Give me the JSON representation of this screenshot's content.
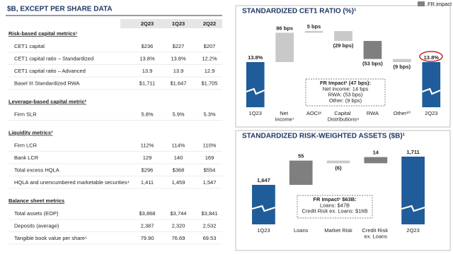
{
  "table": {
    "title": "$B, EXCEPT PER SHARE DATA",
    "columns": [
      "2Q23",
      "1Q23",
      "2Q22"
    ],
    "sections": [
      {
        "heading": "Risk-based capital metrics¹",
        "rows": [
          [
            "CET1 capital",
            "$236",
            "$227",
            "$207"
          ],
          [
            "CET1 capital ratio – Standardized",
            "13.8%",
            "13.8%",
            "12.2%"
          ],
          [
            "CET1 capital ratio – Advanced",
            "13.9",
            "13.9",
            "12.9"
          ],
          [
            "Basel III Standardized RWA",
            "$1,711",
            "$1,647",
            "$1,705"
          ]
        ]
      },
      {
        "heading": "Leverage-based capital metric²",
        "rows": [
          [
            "Firm SLR",
            "5.8%",
            "5.9%",
            "5.3%"
          ]
        ]
      },
      {
        "heading": "Liquidity metrics³",
        "rows": [
          [
            "Firm LCR",
            "112%",
            "114%",
            "110%"
          ],
          [
            "Bank LCR",
            "129",
            "140",
            "169"
          ],
          [
            "Total excess HQLA",
            "$296",
            "$368",
            "$554"
          ],
          [
            "HQLA and unencumbered marketable securities⁴",
            "1,411",
            "1,459",
            "1,547"
          ]
        ]
      },
      {
        "heading": "Balance sheet metrics",
        "rows": [
          [
            "Total assets (EOP)",
            "$3,868",
            "$3,744",
            "$3,841"
          ],
          [
            "Deposits (average)",
            "2,387",
            "2,320",
            "2,532"
          ],
          [
            "Tangible book value per share⁵",
            "79.90",
            "76.69",
            "69.53"
          ]
        ]
      }
    ]
  },
  "legend": {
    "label": "FR impact",
    "color": "#7f7f7f"
  },
  "chart_data": [
    {
      "type": "waterfall",
      "title": "STANDARDIZED CET1 RATIO (%)¹",
      "categories": [
        "1Q23",
        "Net income⁷",
        "AOCI⁸",
        "Capital Distributions⁹",
        "RWA",
        "Other¹⁰",
        "2Q23"
      ],
      "values": [
        13.8,
        0.86,
        0.05,
        -0.29,
        -0.53,
        -0.09,
        13.8
      ],
      "value_labels": [
        "13.8%",
        "86 bps",
        "5 bps",
        "(29 bps)",
        "(53 bps)",
        "(9 bps)",
        "13.8%"
      ],
      "colors": [
        "#1f5c99",
        "#c9c9c9",
        "#c9c9c9",
        "#c9c9c9",
        "#7f7f7f",
        "#c9c9c9",
        "#1f5c99"
      ],
      "annotation": [
        "FR Impact¹ (47 bps):",
        "Net income: 14 bps",
        "RWA: (53 bps)",
        "Other: (9 bps)"
      ]
    },
    {
      "type": "waterfall",
      "title": "STANDARDIZED RISK-WEIGHTED ASSETS ($B)¹",
      "categories": [
        "1Q23",
        "Loans",
        "Market Risk",
        "Credit Risk ex. Loans",
        "2Q23"
      ],
      "values": [
        1647,
        55,
        -6,
        14,
        1711
      ],
      "value_labels": [
        "1,647",
        "55",
        "(6)",
        "14",
        "1,711"
      ],
      "colors": [
        "#1f5c99",
        "#7f7f7f",
        "#c9c9c9",
        "#7f7f7f",
        "#1f5c99"
      ],
      "annotation": [
        "FR Impact¹ $63B:",
        "Loans: $47B",
        "Credit Risk ex. Loans: $16B"
      ]
    }
  ]
}
